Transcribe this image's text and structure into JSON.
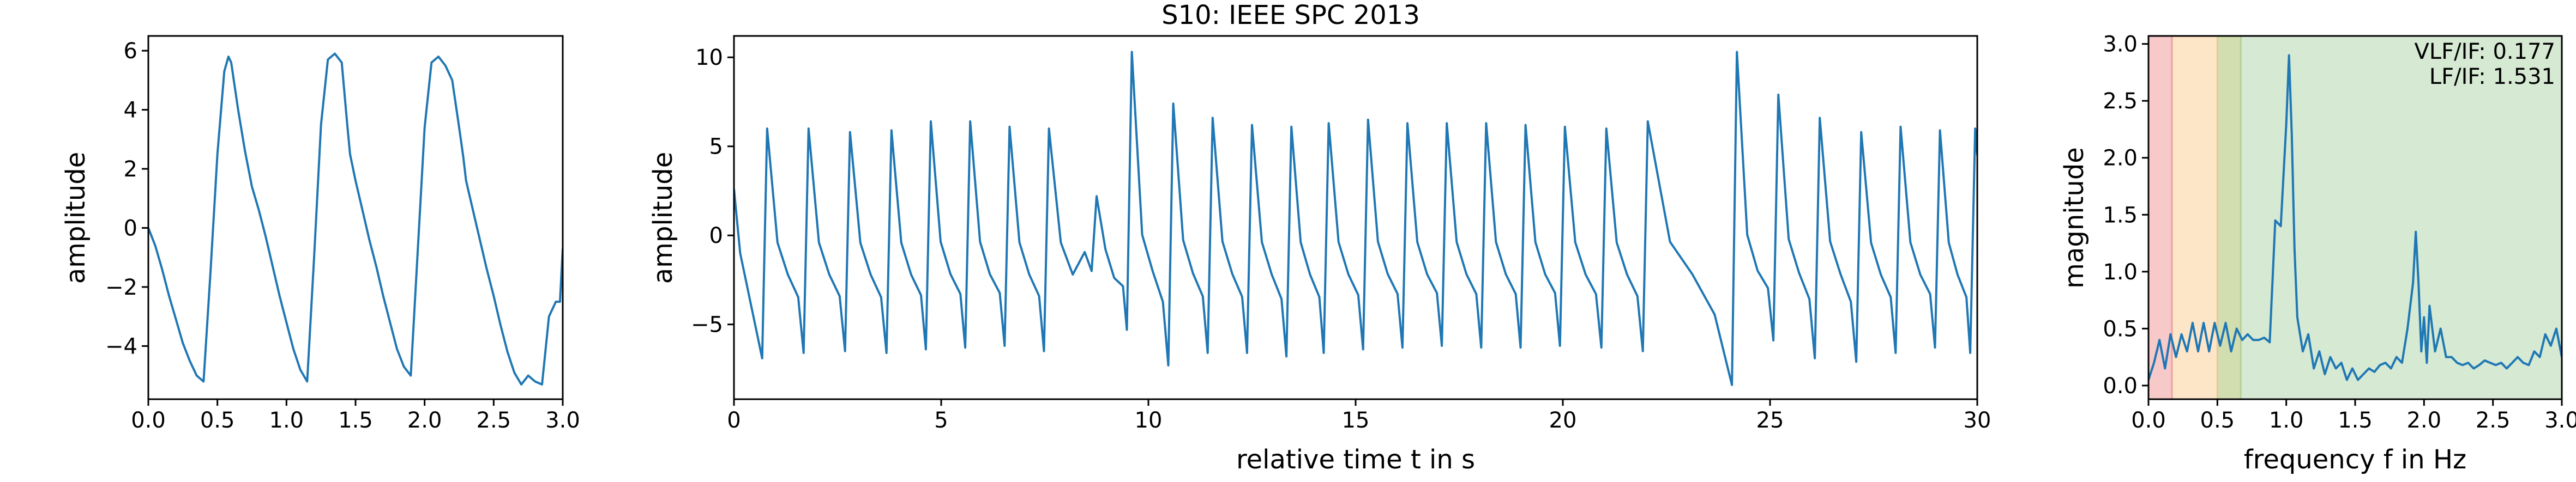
{
  "figure": {
    "title": "S10: IEEE SPC 2013"
  },
  "chart_data": [
    {
      "type": "line",
      "id": "segment",
      "xlabel": "",
      "ylabel": "amplitude",
      "xlim": [
        0,
        3
      ],
      "ylim": [
        -5.8,
        6.5
      ],
      "xticks": [
        0.0,
        0.5,
        1.0,
        1.5,
        2.0,
        2.5,
        3.0
      ],
      "xtick_labels": [
        "0.0",
        "0.5",
        "1.0",
        "1.5",
        "2.0",
        "2.5",
        "3.0"
      ],
      "yticks": [
        -4,
        -2,
        0,
        2,
        4,
        6
      ],
      "ytick_labels": [
        "−4",
        "−2",
        "0",
        "2",
        "4",
        "6"
      ],
      "color": "#1f77b4",
      "x": [
        0.0,
        0.05,
        0.1,
        0.15,
        0.2,
        0.25,
        0.3,
        0.35,
        0.4,
        0.45,
        0.5,
        0.55,
        0.58,
        0.6,
        0.65,
        0.7,
        0.75,
        0.8,
        0.85,
        0.9,
        0.95,
        1.0,
        1.05,
        1.1,
        1.15,
        1.2,
        1.25,
        1.3,
        1.35,
        1.4,
        1.44,
        1.46,
        1.5,
        1.55,
        1.6,
        1.65,
        1.7,
        1.75,
        1.8,
        1.85,
        1.9,
        1.95,
        2.0,
        2.05,
        2.1,
        2.15,
        2.2,
        2.25,
        2.28,
        2.3,
        2.35,
        2.4,
        2.45,
        2.5,
        2.55,
        2.6,
        2.65,
        2.7,
        2.75,
        2.8,
        2.85,
        2.9,
        2.95,
        2.98,
        3.0
      ],
      "values": [
        0.0,
        -0.6,
        -1.4,
        -2.3,
        -3.1,
        -3.9,
        -4.5,
        -5.0,
        -5.2,
        -1.5,
        2.5,
        5.3,
        5.8,
        5.6,
        4.0,
        2.6,
        1.4,
        0.6,
        -0.3,
        -1.3,
        -2.3,
        -3.2,
        -4.1,
        -4.8,
        -5.2,
        -1.0,
        3.5,
        5.7,
        5.9,
        5.6,
        3.5,
        2.5,
        1.6,
        0.6,
        -0.4,
        -1.3,
        -2.3,
        -3.2,
        -4.1,
        -4.7,
        -5.0,
        -0.8,
        3.4,
        5.6,
        5.8,
        5.5,
        5.0,
        3.4,
        2.4,
        1.6,
        0.6,
        -0.4,
        -1.4,
        -2.3,
        -3.3,
        -4.2,
        -4.9,
        -5.3,
        -5.0,
        -5.2,
        -5.3,
        -3.0,
        -2.5,
        -2.5,
        -0.7
      ]
    },
    {
      "type": "line",
      "id": "signal",
      "xlabel": "relative time t in s",
      "ylabel": "amplitude",
      "xlim": [
        0,
        30
      ],
      "ylim": [
        -9.2,
        11.2
      ],
      "xticks": [
        0,
        5,
        10,
        15,
        20,
        25,
        30
      ],
      "xtick_labels": [
        "0",
        "5",
        "10",
        "15",
        "20",
        "25",
        "30"
      ],
      "yticks": [
        -5,
        0,
        5,
        10
      ],
      "ytick_labels": [
        "−5",
        "0",
        "5",
        "10"
      ],
      "color": "#1f77b4",
      "beat_times": [
        0.8,
        1.8,
        2.8,
        3.8,
        4.75,
        5.7,
        6.65,
        7.6,
        8.75,
        9.6,
        10.6,
        11.55,
        12.5,
        13.45,
        14.35,
        15.3,
        16.25,
        17.2,
        18.15,
        19.1,
        20.05,
        21.05,
        22.05,
        24.2,
        25.2,
        26.2,
        27.2,
        28.15,
        29.1,
        29.95
      ],
      "beat_peaks": [
        6.0,
        6.0,
        5.8,
        5.9,
        6.4,
        6.4,
        6.1,
        6.0,
        2.2,
        10.3,
        7.4,
        6.6,
        6.2,
        6.1,
        6.3,
        6.5,
        6.3,
        6.3,
        6.3,
        6.2,
        6.1,
        6.0,
        6.4,
        10.3,
        7.9,
        6.6,
        5.8,
        6.1,
        5.9,
        6.0
      ],
      "beat_troughs": [
        -6.9,
        -6.6,
        -6.5,
        -6.6,
        -6.4,
        -6.3,
        -6.2,
        -6.5,
        -2.0,
        -5.3,
        -7.3,
        -6.6,
        -6.6,
        -6.8,
        -6.6,
        -6.4,
        -6.3,
        -6.2,
        -6.3,
        -6.3,
        -6.2,
        -6.3,
        -6.5,
        -8.4,
        -5.9,
        -6.9,
        -7.1,
        -6.6,
        -6.3,
        -6.6
      ]
    },
    {
      "type": "line",
      "id": "spectrum",
      "xlabel": "frequency f in Hz",
      "ylabel": "magnitude",
      "xlim": [
        0,
        3
      ],
      "ylim": [
        -0.12,
        3.07
      ],
      "xticks": [
        0.0,
        0.5,
        1.0,
        1.5,
        2.0,
        2.5,
        3.0
      ],
      "xtick_labels": [
        "0.0",
        "0.5",
        "1.0",
        "1.5",
        "2.0",
        "2.5",
        "3.0"
      ],
      "yticks": [
        0.0,
        0.5,
        1.0,
        1.5,
        2.0,
        2.5,
        3.0
      ],
      "ytick_labels": [
        "0.0",
        "0.5",
        "1.0",
        "1.5",
        "2.0",
        "2.5",
        "3.0"
      ],
      "color": "#1f77b4",
      "bands": [
        {
          "from": 0.0,
          "to": 0.17,
          "color": "#f7c9c9"
        },
        {
          "from": 0.17,
          "to": 0.5,
          "color": "#fde5c8"
        },
        {
          "from": 0.5,
          "to": 0.67,
          "color": "#d2ddb0"
        },
        {
          "from": 0.67,
          "to": 3.0,
          "color": "#d5e9d3"
        }
      ],
      "band_edges": [
        {
          "at": 0.17,
          "color": "#f0a0a0"
        },
        {
          "at": 0.5,
          "color": "#e9c98f"
        },
        {
          "at": 0.67,
          "color": "#b8cf99"
        }
      ],
      "annotations": [
        "VLF/IF: 0.177",
        "LF/IF: 1.531"
      ],
      "x": [
        0.0,
        0.04,
        0.08,
        0.12,
        0.16,
        0.2,
        0.24,
        0.28,
        0.32,
        0.36,
        0.4,
        0.44,
        0.48,
        0.52,
        0.56,
        0.6,
        0.64,
        0.68,
        0.72,
        0.76,
        0.8,
        0.84,
        0.88,
        0.92,
        0.96,
        1.0,
        1.02,
        1.04,
        1.06,
        1.08,
        1.12,
        1.16,
        1.2,
        1.24,
        1.28,
        1.32,
        1.36,
        1.4,
        1.44,
        1.48,
        1.52,
        1.56,
        1.6,
        1.64,
        1.68,
        1.72,
        1.76,
        1.8,
        1.84,
        1.88,
        1.92,
        1.94,
        1.96,
        1.98,
        2.0,
        2.02,
        2.04,
        2.08,
        2.12,
        2.16,
        2.2,
        2.24,
        2.28,
        2.32,
        2.36,
        2.4,
        2.44,
        2.48,
        2.52,
        2.56,
        2.6,
        2.64,
        2.68,
        2.72,
        2.76,
        2.8,
        2.84,
        2.88,
        2.92,
        2.96,
        3.0
      ],
      "values": [
        0.05,
        0.2,
        0.4,
        0.15,
        0.45,
        0.25,
        0.45,
        0.3,
        0.55,
        0.3,
        0.55,
        0.3,
        0.55,
        0.35,
        0.55,
        0.3,
        0.5,
        0.4,
        0.45,
        0.4,
        0.4,
        0.42,
        0.38,
        1.45,
        1.4,
        2.3,
        2.9,
        2.2,
        1.2,
        0.6,
        0.3,
        0.45,
        0.15,
        0.3,
        0.1,
        0.25,
        0.15,
        0.2,
        0.05,
        0.15,
        0.05,
        0.1,
        0.15,
        0.12,
        0.18,
        0.2,
        0.15,
        0.25,
        0.2,
        0.5,
        0.9,
        1.35,
        0.9,
        0.3,
        0.6,
        0.2,
        0.7,
        0.3,
        0.5,
        0.25,
        0.25,
        0.2,
        0.18,
        0.2,
        0.15,
        0.18,
        0.22,
        0.2,
        0.18,
        0.2,
        0.15,
        0.2,
        0.25,
        0.2,
        0.18,
        0.3,
        0.25,
        0.45,
        0.35,
        0.5,
        0.25
      ]
    }
  ]
}
